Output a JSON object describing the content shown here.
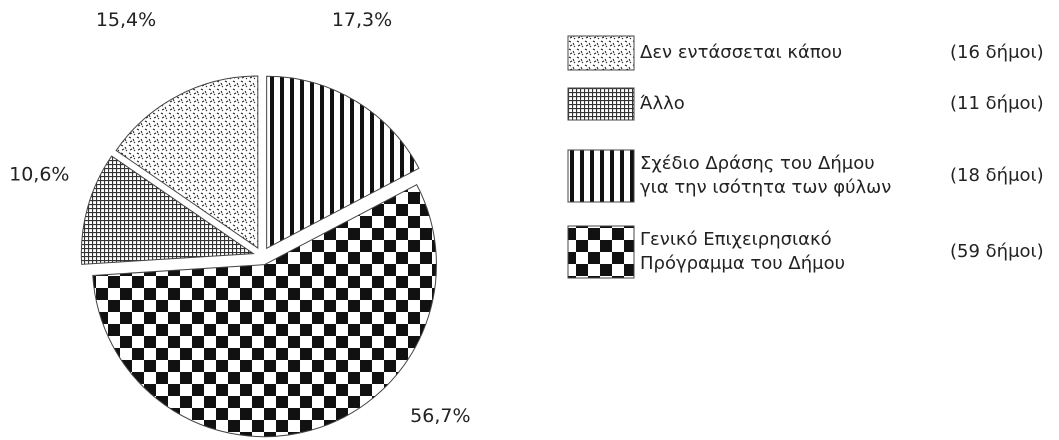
{
  "chart_data": {
    "type": "pie",
    "categories": [
      "Δεν εντάσσεται κάπου",
      "Άλλο",
      "Σχέδιο Δράσης του Δήμου\nγια την ισότητα των φύλων",
      "Γενικό Επιχειρησιακό\nΠρόγραμμα του Δήμου"
    ],
    "values": [
      15.4,
      10.6,
      17.3,
      56.7
    ],
    "value_labels": [
      "15,4%",
      "10,6%",
      "17,3%",
      "56,7%"
    ],
    "counts": [
      "(16 δήμοι)",
      "(11 δήμοι)",
      "(18 δήμοι)",
      "(59 δήμοι)"
    ],
    "patterns": [
      "dots",
      "grid",
      "stripes",
      "checker"
    ]
  }
}
